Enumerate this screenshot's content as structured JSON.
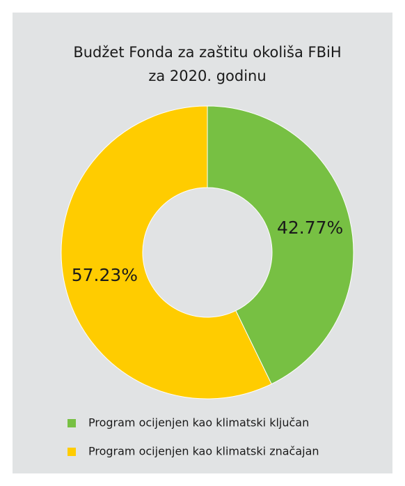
{
  "chart_data": {
    "type": "donut",
    "title": [
      "Budžet Fonda za zaštitu okoliša FBiH",
      "za 2020. godinu"
    ],
    "categories": [
      "Program ocijenjen kao klimatski ključan",
      "Program ocijenjen kao klimatski značajan"
    ],
    "values": [
      42.77,
      57.23
    ],
    "value_labels": [
      "42.77%",
      "57.23%"
    ],
    "colors": [
      "#77c043",
      "#ffcc00"
    ]
  }
}
